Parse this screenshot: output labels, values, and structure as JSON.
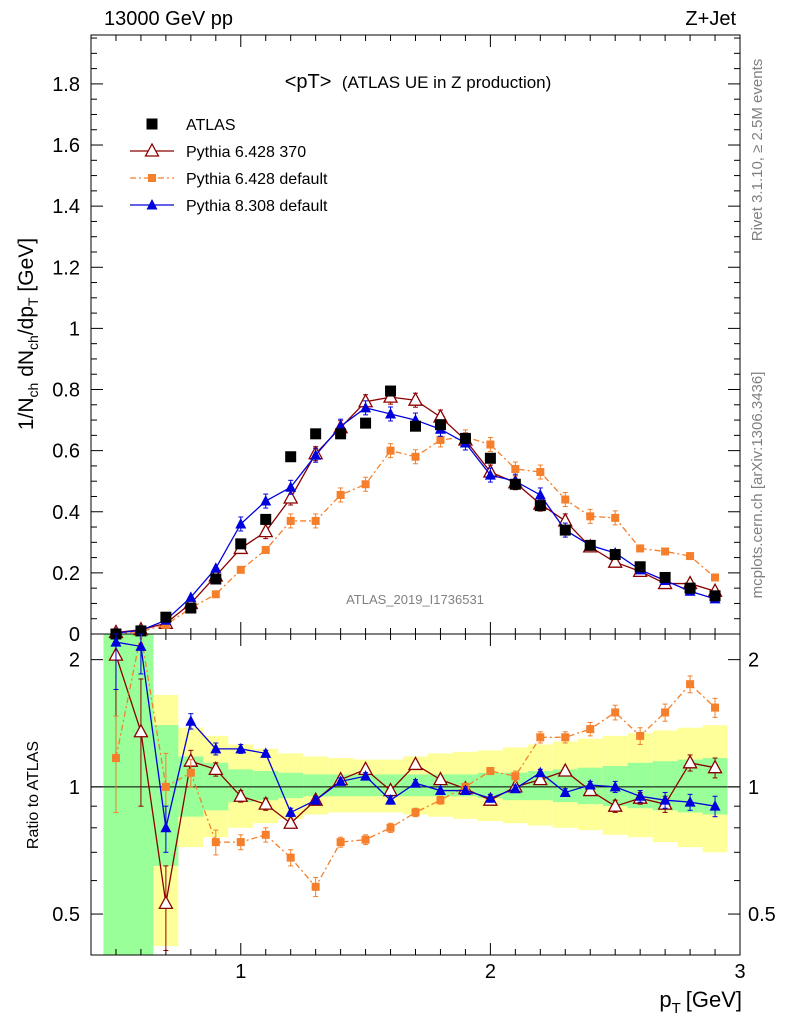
{
  "header": {
    "left": "13000 GeV pp",
    "right": "Z+Jet"
  },
  "side_labels": {
    "rivet": "Rivet 3.1.10, ≥ 2.5M events",
    "mcplots": "mcplots.cern.ch [arXiv:1306.3436]"
  },
  "chart_data": {
    "type": "scatter",
    "title": "<pT>",
    "subtitle": "(ATLAS UE in Z production)",
    "watermark": "ATLAS_2019_I1736531",
    "xlabel": "p",
    "xlabel_sub": "T",
    "xlabel_unit": "[GeV]",
    "ylabel": "1/N",
    "ylabel_parts": [
      "1/N",
      "ch",
      " dN",
      "ch",
      "/dp",
      "T",
      " [GeV]"
    ],
    "ratio_ylabel": "Ratio to ATLAS",
    "xlim": [
      0.4,
      3.0
    ],
    "ylim": [
      0,
      1.96
    ],
    "ratio_ylim": [
      0.4,
      2.3
    ],
    "ratio_log_scale": true,
    "xticks": [
      "1",
      "2",
      "3"
    ],
    "yticks": [
      "0",
      "0.2",
      "0.4",
      "0.6",
      "0.8",
      "1",
      "1.2",
      "1.4",
      "1.6",
      "1.8"
    ],
    "ratio_yticks": [
      "0.5",
      "1",
      "2"
    ],
    "legend_position": "top-left",
    "x": [
      0.5,
      0.6,
      0.7,
      0.8,
      0.9,
      1.0,
      1.1,
      1.2,
      1.3,
      1.4,
      1.5,
      1.6,
      1.7,
      1.8,
      1.9,
      2.0,
      2.1,
      2.2,
      2.3,
      2.4,
      2.5,
      2.6,
      2.7,
      2.8,
      2.9
    ],
    "series": [
      {
        "name": "ATLAS",
        "color": "#000000",
        "marker": "square",
        "values": [
          0.0,
          0.01,
          0.055,
          0.085,
          0.18,
          0.295,
          0.375,
          0.58,
          0.655,
          0.655,
          0.69,
          0.795,
          0.68,
          0.685,
          0.64,
          0.575,
          0.49,
          0.42,
          0.34,
          0.29,
          0.26,
          0.22,
          0.185,
          0.15,
          0.125
        ],
        "ratio": [
          1,
          1,
          1,
          1,
          1,
          1,
          1,
          1,
          1,
          1,
          1,
          1,
          1,
          1,
          1,
          1,
          1,
          1,
          1,
          1,
          1,
          1,
          1,
          1,
          1
        ],
        "green_band": [
          [
            0.25,
            4.0
          ],
          [
            0.25,
            4.0
          ],
          [
            0.65,
            1.4
          ],
          [
            0.85,
            1.18
          ],
          [
            0.88,
            1.14
          ],
          [
            0.92,
            1.1
          ],
          [
            0.93,
            1.09
          ],
          [
            0.94,
            1.08
          ],
          [
            0.95,
            1.07
          ],
          [
            0.95,
            1.07
          ],
          [
            0.95,
            1.07
          ],
          [
            0.95,
            1.07
          ],
          [
            0.95,
            1.07
          ],
          [
            0.95,
            1.07
          ],
          [
            0.95,
            1.07
          ],
          [
            0.94,
            1.08
          ],
          [
            0.93,
            1.08
          ],
          [
            0.93,
            1.09
          ],
          [
            0.92,
            1.1
          ],
          [
            0.91,
            1.11
          ],
          [
            0.9,
            1.12
          ],
          [
            0.89,
            1.14
          ],
          [
            0.88,
            1.15
          ],
          [
            0.87,
            1.16
          ],
          [
            0.86,
            1.17
          ]
        ],
        "yellow_band": [
          [
            0.25,
            4.0
          ],
          [
            0.25,
            4.0
          ],
          [
            0.42,
            1.65
          ],
          [
            0.72,
            1.38
          ],
          [
            0.76,
            1.32
          ],
          [
            0.8,
            1.26
          ],
          [
            0.82,
            1.23
          ],
          [
            0.84,
            1.2
          ],
          [
            0.86,
            1.18
          ],
          [
            0.87,
            1.17
          ],
          [
            0.87,
            1.16
          ],
          [
            0.87,
            1.16
          ],
          [
            0.86,
            1.18
          ],
          [
            0.85,
            1.2
          ],
          [
            0.84,
            1.21
          ],
          [
            0.83,
            1.22
          ],
          [
            0.82,
            1.24
          ],
          [
            0.81,
            1.26
          ],
          [
            0.8,
            1.28
          ],
          [
            0.79,
            1.3
          ],
          [
            0.77,
            1.32
          ],
          [
            0.76,
            1.34
          ],
          [
            0.74,
            1.36
          ],
          [
            0.72,
            1.38
          ],
          [
            0.7,
            1.4
          ]
        ]
      },
      {
        "name": "Pythia 6.428 370",
        "color": "#8b0000",
        "marker": "open-triangle",
        "values": [
          0.005,
          0.014,
          0.035,
          0.1,
          0.19,
          0.28,
          0.335,
          0.445,
          0.59,
          0.675,
          0.76,
          0.775,
          0.765,
          0.71,
          0.635,
          0.53,
          0.495,
          0.425,
          0.37,
          0.285,
          0.235,
          0.205,
          0.165,
          0.165,
          0.14
        ],
        "ratio": [
          2.05,
          1.35,
          0.53,
          1.15,
          1.1,
          0.95,
          0.91,
          0.82,
          0.93,
          1.04,
          1.1,
          0.98,
          1.13,
          1.04,
          0.99,
          0.93,
          1.0,
          1.04,
          1.09,
          0.98,
          0.9,
          0.94,
          0.91,
          1.14,
          1.11
        ],
        "ratio_err": [
          0.9,
          0.45,
          0.12,
          0.07,
          0.04,
          0.03,
          0.03,
          0.02,
          0.02,
          0.02,
          0.02,
          0.02,
          0.02,
          0.02,
          0.02,
          0.02,
          0.02,
          0.02,
          0.02,
          0.02,
          0.03,
          0.03,
          0.04,
          0.05,
          0.06
        ]
      },
      {
        "name": "Pythia 6.428 default",
        "color": "#f57f2a",
        "marker": "filled-square-small",
        "values": [
          0.002,
          0.008,
          0.03,
          0.085,
          0.13,
          0.21,
          0.275,
          0.37,
          0.37,
          0.455,
          0.49,
          0.6,
          0.58,
          0.635,
          0.645,
          0.62,
          0.54,
          0.53,
          0.44,
          0.385,
          0.38,
          0.28,
          0.27,
          0.255,
          0.185
        ],
        "ratio": [
          1.17,
          3.0,
          1.0,
          1.08,
          0.74,
          0.74,
          0.77,
          0.68,
          0.58,
          0.74,
          0.75,
          0.8,
          0.87,
          0.93,
          1.0,
          1.09,
          1.06,
          1.31,
          1.31,
          1.37,
          1.5,
          1.32,
          1.5,
          1.75,
          1.54
        ],
        "ratio_err": [
          0.3,
          0.6,
          0.2,
          0.08,
          0.05,
          0.03,
          0.03,
          0.03,
          0.03,
          0.02,
          0.02,
          0.02,
          0.02,
          0.02,
          0.02,
          0.02,
          0.03,
          0.04,
          0.04,
          0.05,
          0.06,
          0.06,
          0.07,
          0.08,
          0.08
        ]
      },
      {
        "name": "Pythia 8.308 default",
        "color": "#0000dd",
        "marker": "filled-triangle",
        "values": [
          0.003,
          0.012,
          0.045,
          0.12,
          0.215,
          0.36,
          0.435,
          0.48,
          0.585,
          0.68,
          0.74,
          0.72,
          0.7,
          0.67,
          0.625,
          0.52,
          0.5,
          0.455,
          0.34,
          0.29,
          0.265,
          0.21,
          0.175,
          0.14,
          0.115
        ],
        "ratio": [
          2.2,
          2.15,
          0.8,
          1.43,
          1.23,
          1.23,
          1.2,
          0.87,
          0.93,
          1.03,
          1.06,
          0.93,
          1.02,
          0.98,
          0.98,
          0.94,
          0.99,
          1.08,
          0.97,
          1.01,
          1.0,
          0.95,
          0.93,
          0.92,
          0.9
        ],
        "ratio_err": [
          0.5,
          0.3,
          0.1,
          0.06,
          0.04,
          0.03,
          0.02,
          0.02,
          0.02,
          0.02,
          0.02,
          0.02,
          0.02,
          0.02,
          0.02,
          0.02,
          0.02,
          0.02,
          0.02,
          0.02,
          0.03,
          0.03,
          0.04,
          0.04,
          0.05
        ]
      }
    ]
  }
}
